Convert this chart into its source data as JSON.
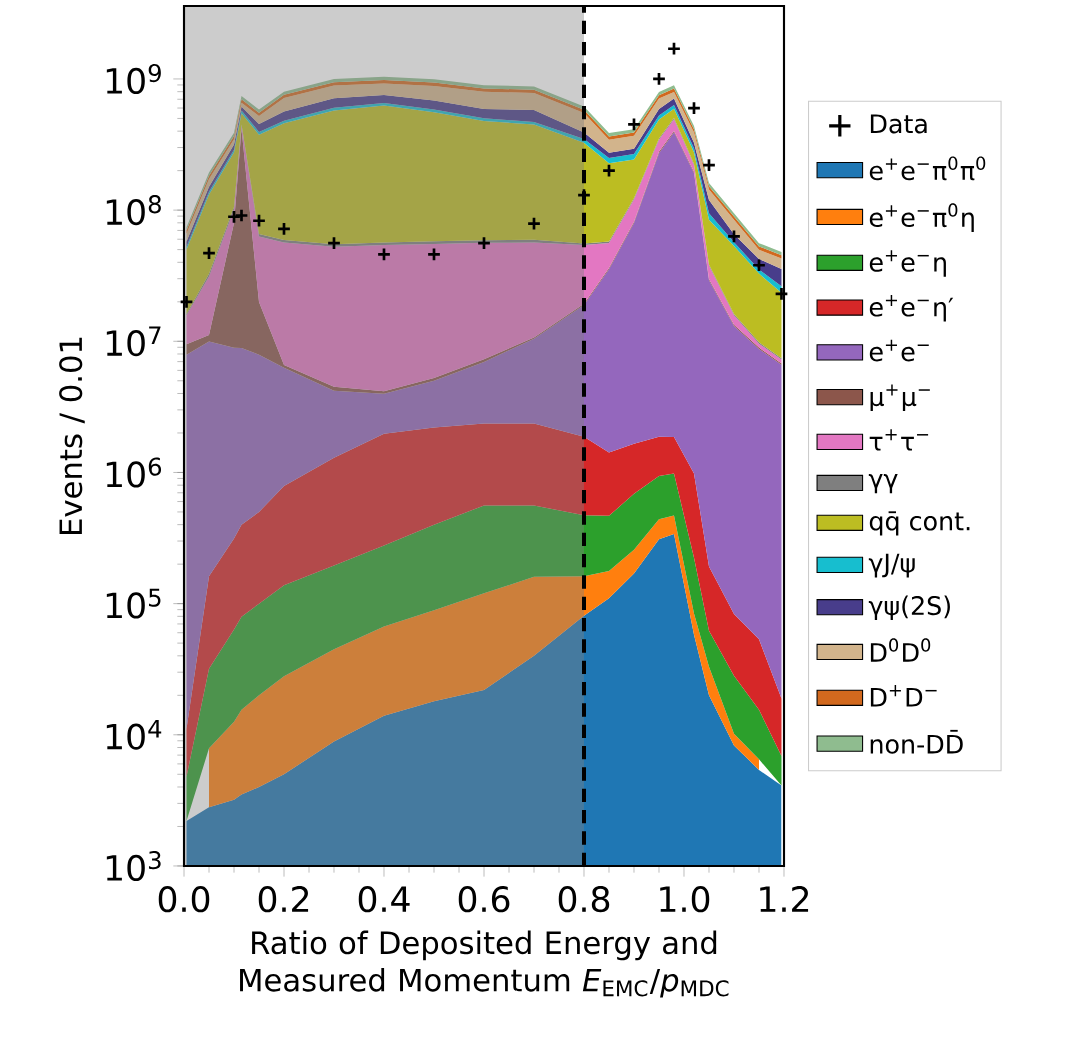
{
  "chart_data": {
    "type": "area",
    "stacked": true,
    "xlabel": "Ratio of Deposited Energy and Measured Momentum *E*$_{EMC}$/*p*$_{MDC}$",
    "ylabel": "Events / 0.01",
    "log": "y",
    "legend": "right",
    "xlim": [
      0,
      1.2
    ],
    "ylim": [
      1000,
      3600000000.0
    ],
    "xticks": [
      {
        "value": 0,
        "label": "0.0"
      },
      0.2,
      0.4,
      0.6,
      0.8,
      {
        "value": 1,
        "label": "1.0"
      },
      1.2
    ],
    "yticks": [
      {
        "value": 1000,
        "label": "10$^{3}$"
      },
      {
        "value": 10000,
        "label": "10$^{4}$"
      },
      {
        "value": 100000,
        "label": "10$^{5}$"
      },
      {
        "value": 1000000,
        "label": "10$^{6}$"
      },
      {
        "value": 10000000,
        "label": "10$^{7}$"
      },
      {
        "value": 100000000,
        "label": "10$^{8}$"
      },
      {
        "value": 1000000000,
        "label": "10$^{9}$"
      }
    ],
    "bands": [
      {
        "axis": "x",
        "from": 0,
        "to": 0.8,
        "color": "#808080"
      }
    ],
    "ref_lines": [
      {
        "axis": "x",
        "value": 0.8,
        "color": "#000000",
        "line_style": "dashed"
      }
    ],
    "x": [
      0.005,
      0.05,
      0.1,
      0.115,
      0.15,
      0.2,
      0.3,
      0.4,
      0.5,
      0.6,
      0.7,
      0.8,
      0.85,
      0.9,
      0.95,
      0.98,
      1.02,
      1.05,
      1.1,
      1.15,
      1.195
    ],
    "series": [
      {
        "name": "Data",
        "type": "scatter",
        "marker": "cross",
        "color": "#000000",
        "values": [
          20000000.0,
          47000000.0,
          89000000.0,
          91000000.0,
          83000000.0,
          72000000.0,
          56000000.0,
          46000000.0,
          46000000.0,
          56000000.0,
          79000000.0,
          130000000.0,
          200000000.0,
          450000000.0,
          1000000000.0,
          1700000000.0,
          600000000.0,
          220000000.0,
          63000000.0,
          38000000.0,
          23000000.0
        ]
      },
      {
        "name": "e$^{+}$e$^{−}$π$^{0}$π$^{0}$",
        "color": "#1f77b4",
        "values": [
          2200,
          2800,
          3200,
          3500,
          4000,
          5000,
          8900,
          14000,
          18000,
          22000,
          40000,
          81000,
          110000,
          170000,
          310000,
          340000,
          58000,
          20000,
          8300,
          5400,
          4100
        ]
      },
      {
        "name": "e$^{+}$e$^{−}$π$^{0}$η",
        "color": "#ff7f0e",
        "values": [
          null,
          5100,
          9400,
          12000,
          16000,
          23000,
          36000,
          53000,
          71000,
          98000,
          120000,
          81000,
          67000,
          87000,
          130000,
          130000,
          26000,
          13000,
          1900,
          1100,
          null
        ]
      },
      {
        "name": "e$^{+}$e$^{−}$η",
        "color": "#2ca02c",
        "values": [
          2600,
          24000,
          51000,
          64000,
          80000,
          110000,
          150000,
          210000,
          310000,
          440000,
          400000,
          310000,
          290000,
          430000,
          500000,
          510000,
          140000,
          29000,
          18000,
          9000,
          2800
        ]
      },
      {
        "name": "e$^{+}$e$^{−}$η′",
        "color": "#d62728",
        "values": [
          6300,
          130000,
          250000,
          320000,
          400000,
          650000,
          1100000,
          1700000,
          1800000,
          1800000,
          1800000,
          1400000,
          950000,
          970000,
          930000,
          880000,
          760000,
          130000,
          55000,
          38000,
          12000
        ]
      },
      {
        "name": "e$^{+}$e$^{−}$",
        "color": "#9467bd",
        "values": [
          7900000.0,
          9800000.0,
          8600000.0,
          8500000.0,
          7400000.0,
          5500000.0,
          2900000.0,
          2000000.0,
          2800000.0,
          4600000.0,
          8100000.0,
          17000000.0,
          34000000.0,
          78000000.0,
          270000000.0,
          390000000.0,
          190000000.0,
          29000000.0,
          13000000.0,
          8700000.0,
          6600000.0
        ]
      },
      {
        "name": "μ$^{+}$μ$^{−}$",
        "color": "#8c564b",
        "values": [
          1600000.0,
          1200000.0,
          71000000.0,
          410000000.0,
          12000000.0,
          300000.0,
          300000.0,
          190000.0,
          240000.0,
          330000.0,
          250000.0,
          430000.0,
          830000.0,
          1900000.0,
          6400000.0,
          9100000.0,
          4500000.0,
          690000.0,
          310000.0,
          200000.0,
          150000.0
        ]
      },
      {
        "name": "τ$^{+}$τ$^{−}$",
        "color": "#e377c2",
        "values": [
          6300000.0,
          20000000.0,
          21000000.0,
          20000000.0,
          43000000.0,
          50000000.0,
          48000000.0,
          50000000.0,
          50000000.0,
          49000000.0,
          46000000.0,
          35000000.0,
          20000000.0,
          39000000.0,
          65000000.0,
          92000000.0,
          24000000.0,
          7800000.0,
          2400000.0,
          640000.0,
          480000.0
        ]
      },
      {
        "name": "γγ",
        "color": "#7f7f7f",
        "values": [
          370000.0,
          1500000.0,
          4700000.0,
          10000000.0,
          3000000.0,
          2700000.0,
          2500000.0,
          2500000.0,
          2600000.0,
          2700000.0,
          2700000.0,
          1300000.0,
          1300000.0,
          2800000.0,
          8100000.0,
          11000000.0,
          5100000.0,
          880000.0,
          370000.0,
          220000.0,
          170000.0
        ]
      },
      {
        "name": "qq̄ cont.",
        "color": "#bcbd22",
        "values": [
          34000000.0,
          99000000.0,
          170000000.0,
          100000000.0,
          310000000.0,
          400000000.0,
          520000000.0,
          570000000.0,
          500000000.0,
          420000000.0,
          390000000.0,
          270000000.0,
          170000000.0,
          120000000.0,
          140000000.0,
          88000000.0,
          52000000.0,
          46000000.0,
          37000000.0,
          23000000.0,
          16000000.0
        ]
      },
      {
        "name": "γJ/ψ",
        "color": "#17becf",
        "values": [
          2400000.0,
          6200000.0,
          13000000.0,
          26000000.0,
          18000000.0,
          21000000.0,
          27000000.0,
          30000000.0,
          27000000.0,
          23000000.0,
          21000000.0,
          23000000.0,
          22000000.0,
          24000000.0,
          35000000.0,
          42000000.0,
          20000000.0,
          10000000.0,
          3800000.0,
          2400000.0,
          2900000.0
        ]
      },
      {
        "name": "γψ(2S)",
        "color": "#483d8b",
        "values": [
          5100000.0,
          13000000.0,
          28000000.0,
          41000000.0,
          59000000.0,
          84000000.0,
          110000000.0,
          98000000.0,
          100000000.0,
          88000000.0,
          110000000.0,
          42000000.0,
          24000000.0,
          26000000.0,
          64000000.0,
          77000000.0,
          29000000.0,
          25000000.0,
          8500000.0,
          7200000.0,
          9200000.0
        ]
      },
      {
        "name": "D$^{0}$D$^{0}$",
        "color": "#d2b48c",
        "values": [
          8500000.0,
          22000000.0,
          30000000.0,
          44000000.0,
          68000000.0,
          150000000.0,
          180000000.0,
          170000000.0,
          200000000.0,
          210000000.0,
          200000000.0,
          160000000.0,
          71000000.0,
          76000000.0,
          120000000.0,
          86000000.0,
          65000000.0,
          24000000.0,
          19000000.0,
          7500000.0,
          7200000.0
        ]
      },
      {
        "name": "D$^{+}$D$^{−}$",
        "color": "#d2691e",
        "values": [
          3900000.0,
          10000000.0,
          20000000.0,
          39000000.0,
          31000000.0,
          42000000.0,
          53000000.0,
          55000000.0,
          53000000.0,
          47000000.0,
          46000000.0,
          32000000.0,
          20000000.0,
          22000000.0,
          42000000.0,
          47000000.0,
          23000000.0,
          8500000.0,
          5000000.0,
          3000000.0,
          2500000.0
        ]
      },
      {
        "name": "non-DD̄",
        "color": "#8fbc8f",
        "values": [
          4100000.0,
          11000000.0,
          22000000.0,
          41000000.0,
          33000000.0,
          44000000.0,
          56000000.0,
          58000000.0,
          56000000.0,
          50000000.0,
          49000000.0,
          34000000.0,
          22000000.0,
          23000000.0,
          44000000.0,
          50000000.0,
          24000000.0,
          9000000.0,
          5300000.0,
          3100000.0,
          2700000.0
        ]
      }
    ]
  }
}
